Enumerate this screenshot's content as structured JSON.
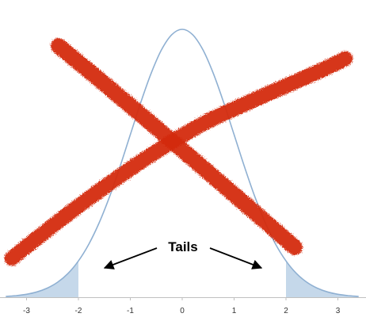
{
  "chart_data": {
    "type": "area",
    "distribution": "standard normal density",
    "x": [
      -3.4,
      -3.2,
      -3.0,
      -2.8,
      -2.6,
      -2.4,
      -2.2,
      -2.0,
      -1.8,
      -1.6,
      -1.4,
      -1.2,
      -1.0,
      -0.8,
      -0.6,
      -0.4,
      -0.2,
      0.0,
      0.2,
      0.4,
      0.6,
      0.8,
      1.0,
      1.2,
      1.4,
      1.6,
      1.8,
      2.0,
      2.2,
      2.4,
      2.6,
      2.8,
      3.0,
      3.2,
      3.4
    ],
    "y": [
      0.0012,
      0.0024,
      0.0044,
      0.0079,
      0.0136,
      0.0224,
      0.0355,
      0.054,
      0.079,
      0.1109,
      0.1497,
      0.1942,
      0.242,
      0.2897,
      0.3332,
      0.3683,
      0.391,
      0.3989,
      0.391,
      0.3683,
      0.3332,
      0.2897,
      0.242,
      0.1942,
      0.1497,
      0.1109,
      0.079,
      0.054,
      0.0355,
      0.0224,
      0.0136,
      0.0079,
      0.0044,
      0.0024,
      0.0012
    ],
    "xlim": [
      -3.4,
      3.4
    ],
    "ylim": [
      0,
      0.42
    ],
    "x_ticks": [
      "-3",
      "-2",
      "-1",
      "0",
      "1",
      "2",
      "3"
    ],
    "x_tick_values": [
      -3,
      -2,
      -1,
      0,
      1,
      2,
      3
    ],
    "shaded_regions": [
      {
        "from": -3.4,
        "to": -2
      },
      {
        "from": 2,
        "to": 3.4
      }
    ],
    "annotation": "Tails",
    "grid": false,
    "legend": "none",
    "colors": {
      "curve": "#8fb0d2",
      "shade": "#c5d8ea",
      "axis": "#bfbfbf",
      "cross": "#d42a12",
      "arrow": "#000000"
    },
    "overlay": "red-hand-drawn-x"
  }
}
